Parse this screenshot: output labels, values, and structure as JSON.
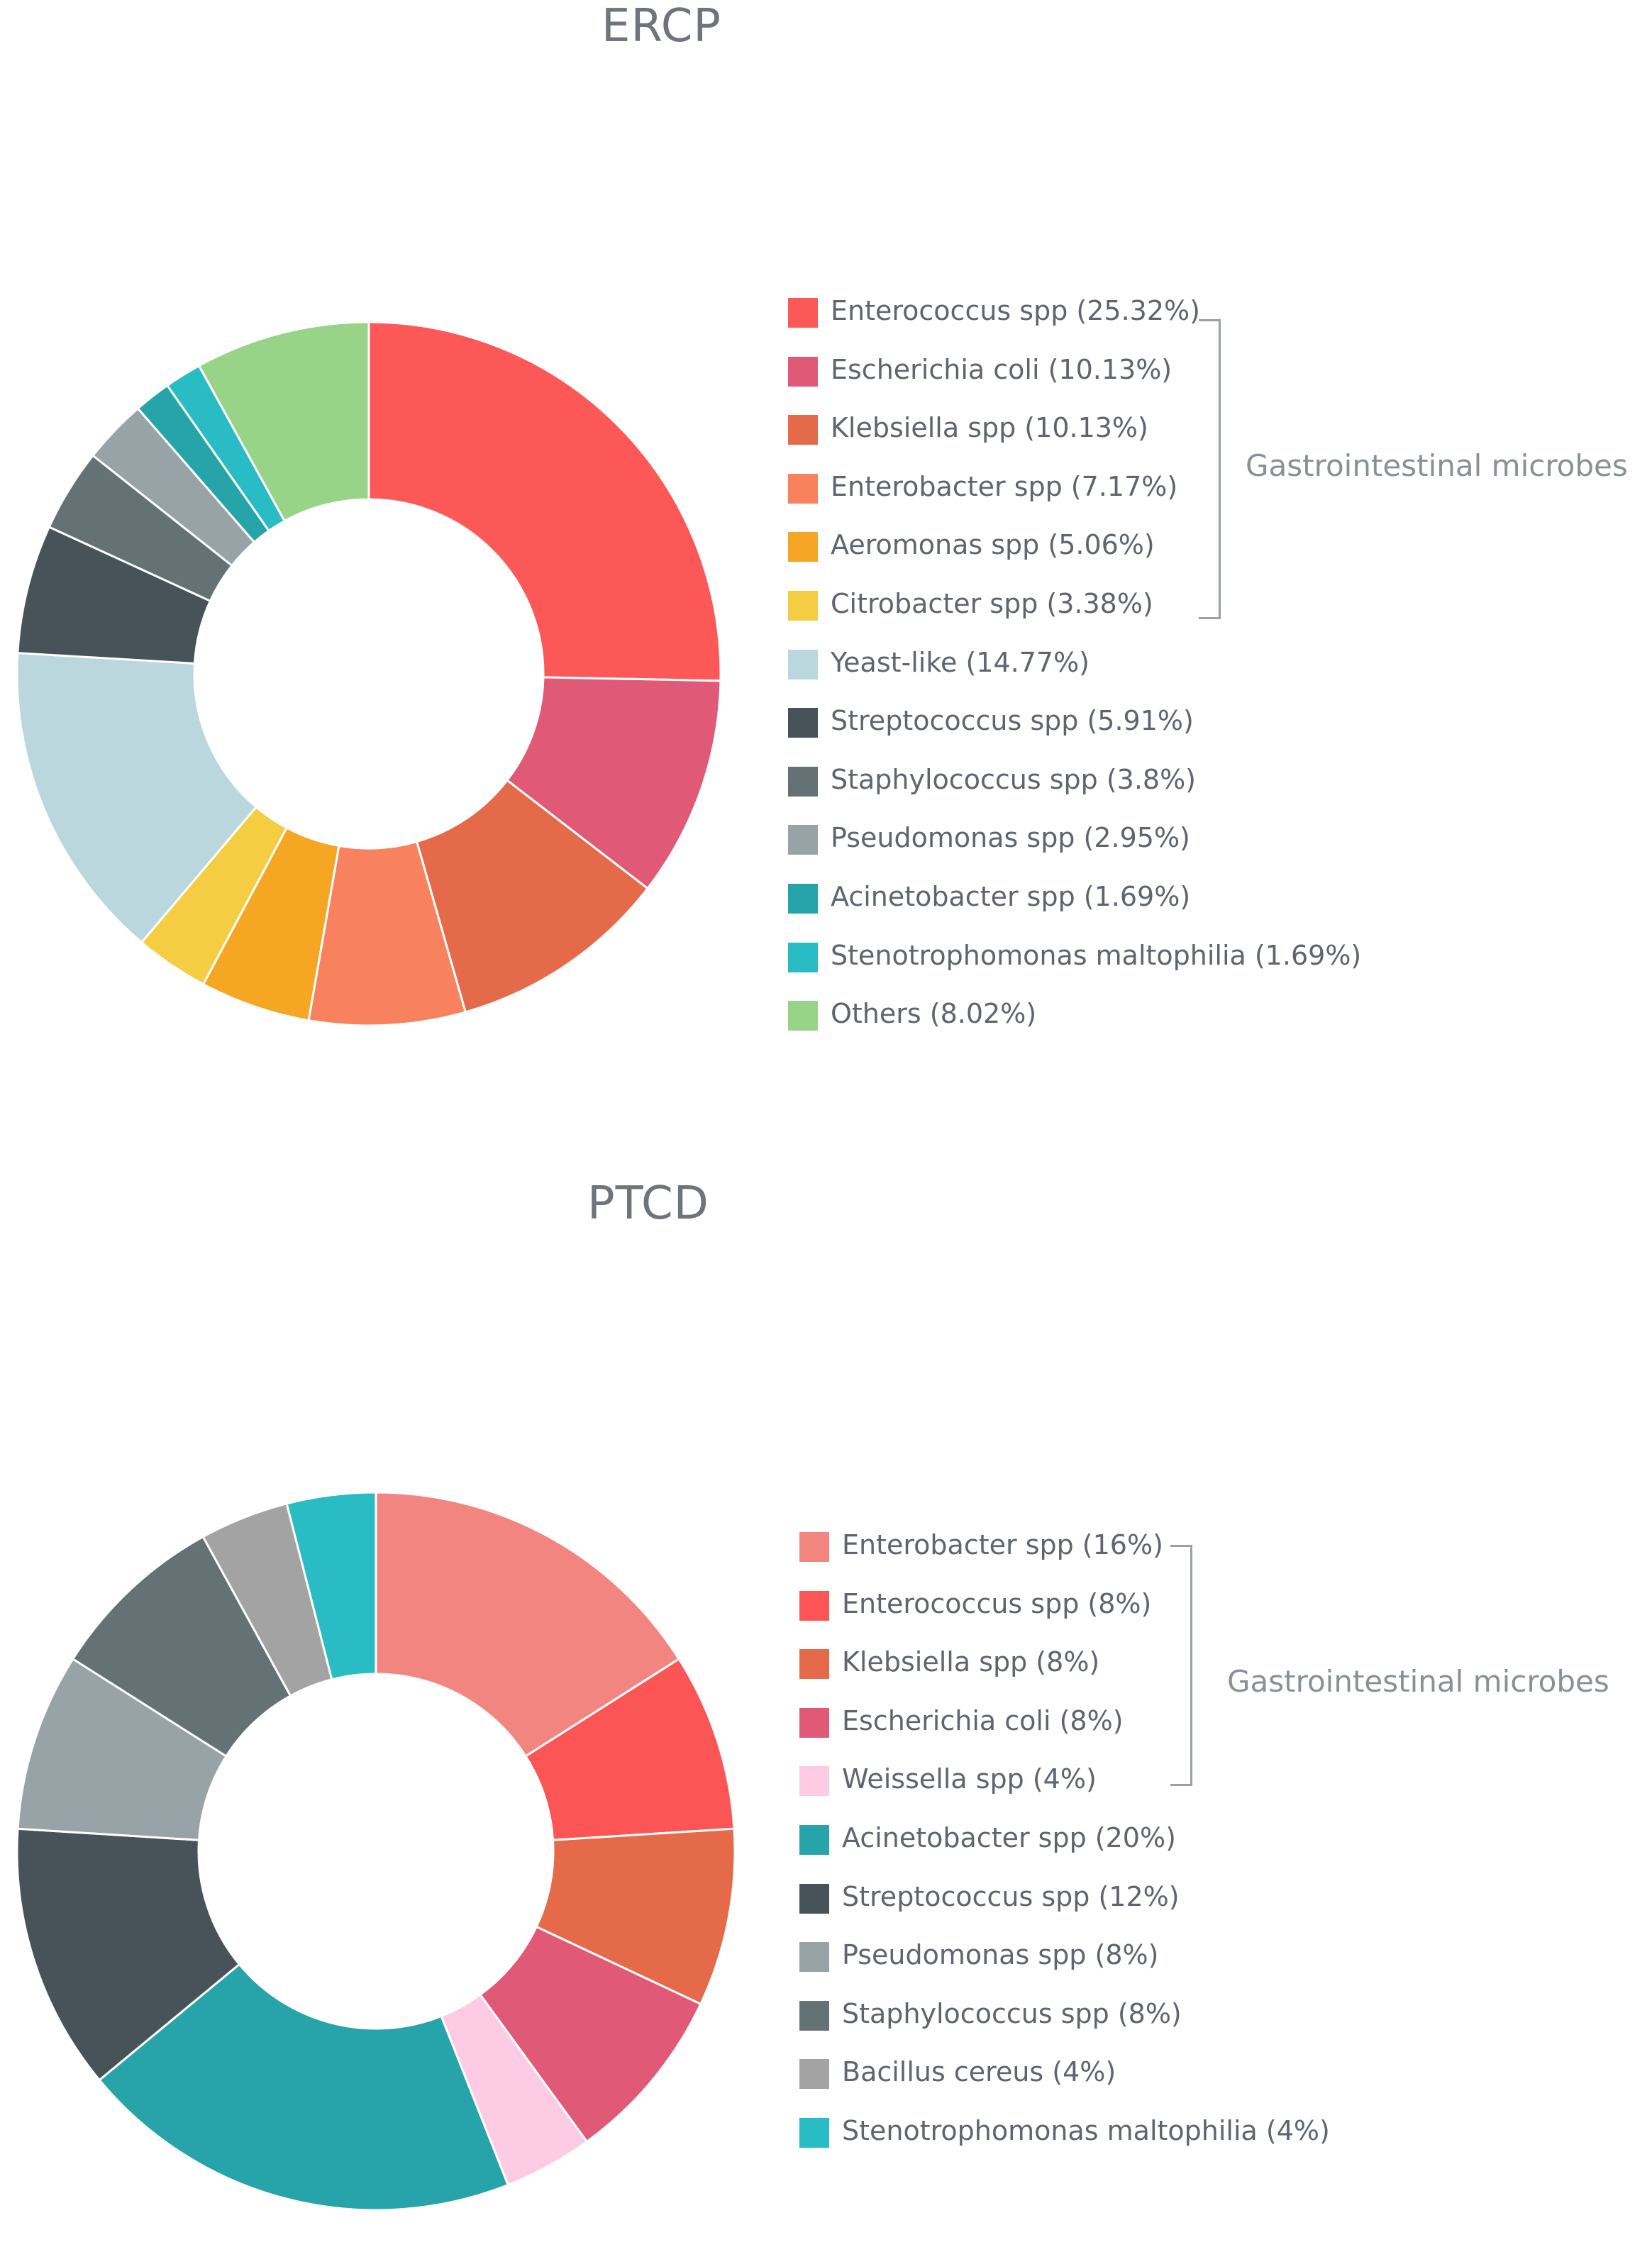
{
  "chart_data": [
    {
      "type": "pie",
      "title": "ERCP",
      "group_label": "Gastrointestinal microbes",
      "categories": [
        "Enterococcus spp",
        "Escherichia coli",
        "Klebsiella spp",
        "Enterobacter spp",
        "Aeromonas spp",
        "Citrobacter spp",
        "Yeast-like",
        "Streptococcus spp",
        "Staphylococcus spp",
        "Pseudomonas spp",
        "Acinetobacter spp",
        "Stenotrophomonas maltophilia",
        "Others"
      ],
      "values": [
        25.32,
        10.13,
        10.13,
        7.17,
        5.06,
        3.38,
        14.77,
        5.91,
        3.8,
        2.95,
        1.69,
        1.69,
        8.02
      ],
      "labels": [
        "Enterococcus spp (25.32%)",
        "Escherichia coli (10.13%)",
        "Klebsiella spp (10.13%)",
        "Enterobacter spp (7.17%)",
        "Aeromonas spp (5.06%)",
        "Citrobacter spp (3.38%)",
        "Yeast-like (14.77%)",
        "Streptococcus spp (5.91%)",
        "Staphylococcus spp (3.8%)",
        "Pseudomonas spp (2.95%)",
        "Acinetobacter spp (1.69%)",
        "Stenotrophomonas maltophilia (1.69%)",
        "Others (8.02%)"
      ],
      "colors": [
        "#fd5858",
        "#e05a78",
        "#e56a4a",
        "#f9825e",
        "#f5a623",
        "#f5cd42",
        "#b9d7dc",
        "#485359",
        "#647175",
        "#97a3a7",
        "#26a4a9",
        "#29bcc4",
        "#98d488"
      ],
      "group_count": 6
    },
    {
      "type": "pie",
      "title": "PTCD",
      "group_label": "Gastrointestinal microbes",
      "categories": [
        "Enterobacter spp",
        "Enterococcus spp",
        "Klebsiella spp",
        "Escherichia coli",
        "Weissella spp",
        "Acinetobacter spp",
        "Streptococcus spp",
        "Pseudomonas spp",
        "Staphylococcus spp",
        "Bacillus cereus",
        "Stenotrophomonas maltophilia"
      ],
      "values": [
        16,
        8,
        8,
        8,
        4,
        20,
        12,
        8,
        8,
        4,
        4
      ],
      "labels": [
        "Enterobacter spp (16%)",
        "Enterococcus spp (8%)",
        "Klebsiella spp (8%)",
        "Escherichia coli (8%)",
        "Weissella spp (4%)",
        "Acinetobacter spp (20%)",
        "Streptococcus spp (12%)",
        "Pseudomonas spp (8%)",
        "Staphylococcus spp (8%)",
        "Bacillus cereus (4%)",
        "Stenotrophomonas maltophilia (4%)"
      ],
      "colors": [
        "#f38581",
        "#fc5556",
        "#e56a4a",
        "#e05a78",
        "#fecbe4",
        "#26a4a9",
        "#485359",
        "#97a3a7",
        "#647175",
        "#a3a3a3",
        "#29bcc4"
      ],
      "group_count": 5
    }
  ]
}
